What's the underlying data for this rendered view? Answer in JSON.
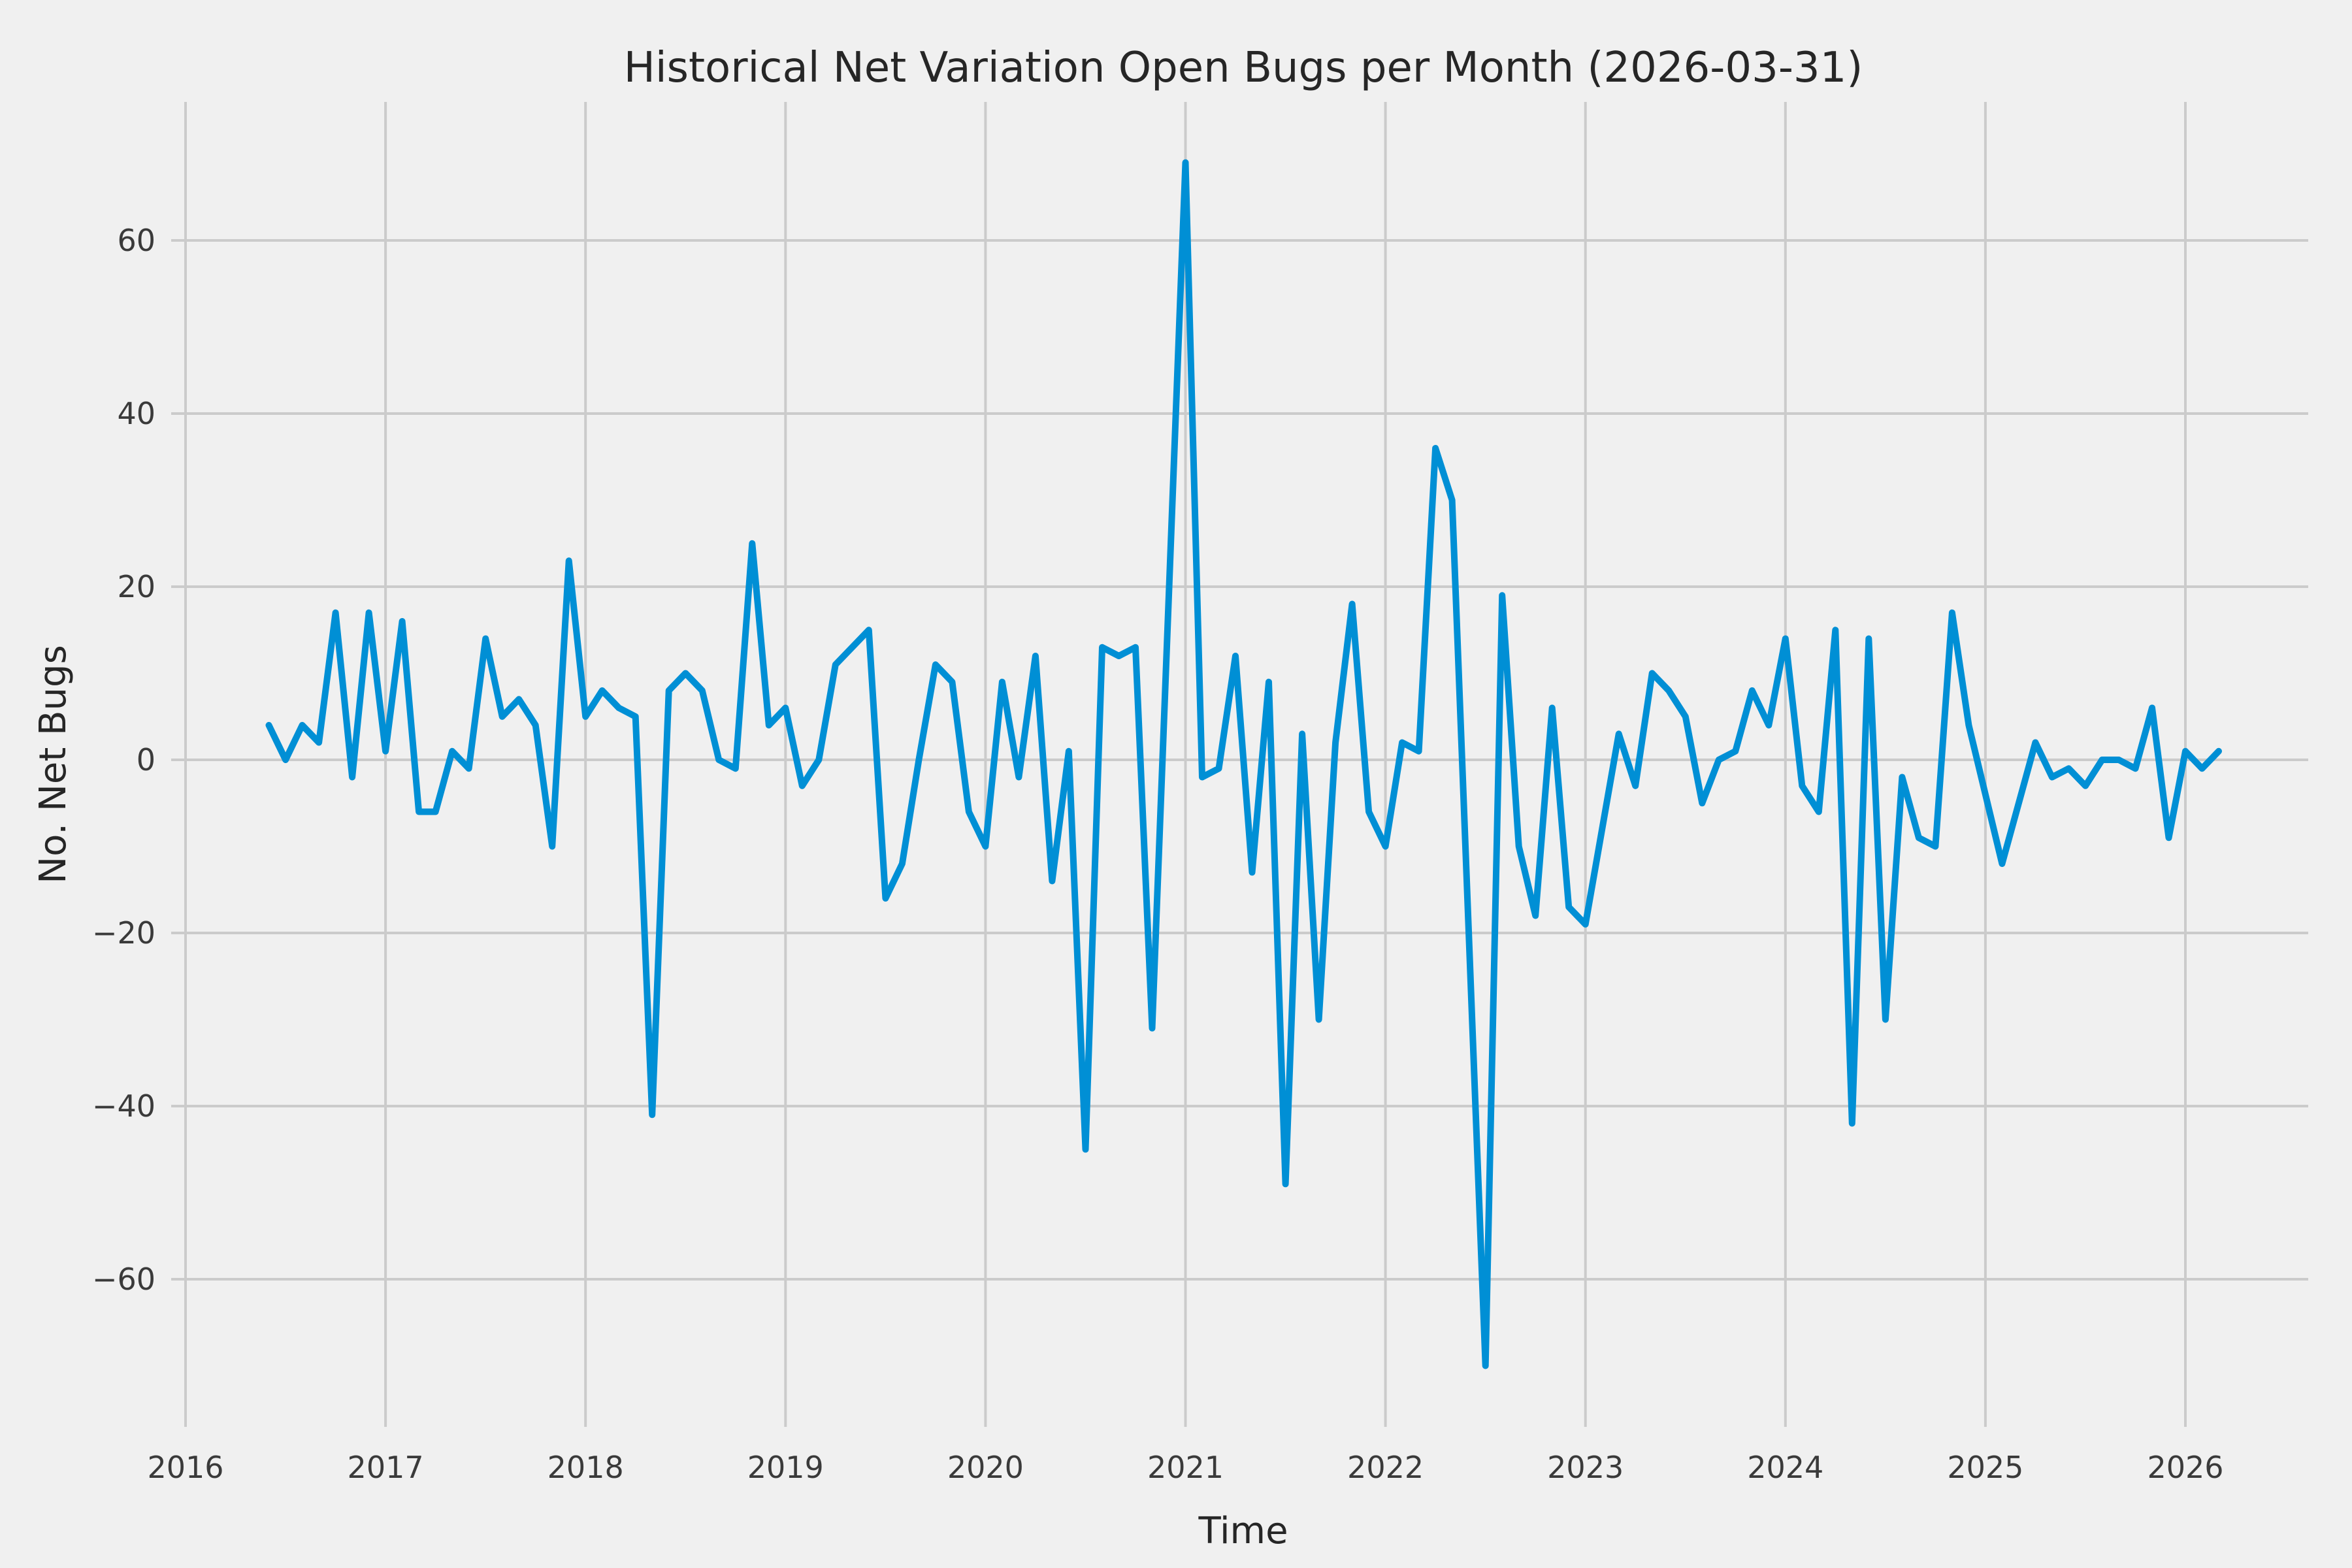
{
  "figure": {
    "background_color": "#f0f0f0",
    "grid_color": "#cbcbcb",
    "text_color": "#262626",
    "tick_color": "#3a3a3a"
  },
  "chart_data": {
    "type": "line",
    "title": "Historical Net Variation Open Bugs per Month (2026-03-31)",
    "xlabel": "Time",
    "ylabel": "No. Net Bugs",
    "legend": false,
    "grid": true,
    "x_ticks": [
      2016,
      2017,
      2018,
      2019,
      2020,
      2021,
      2022,
      2023,
      2024,
      2025,
      2026
    ],
    "x_tick_labels": [
      "2016",
      "2017",
      "2018",
      "2019",
      "2020",
      "2021",
      "2022",
      "2023",
      "2024",
      "2025",
      "2026"
    ],
    "y_ticks": [
      -60,
      -40,
      -20,
      0,
      20,
      40,
      60
    ],
    "y_tick_labels": [
      "−60",
      "−40",
      "−20",
      "0",
      "20",
      "40",
      "60"
    ],
    "ylim": [
      -77,
      76
    ],
    "xlim_years": [
      2015.93,
      2026.66
    ],
    "series": [
      {
        "name": "net-variation-open-bugs",
        "color": "#008fd5",
        "start_month": "2016-05",
        "end_month": "2026-02",
        "frequency": "monthly",
        "values": [
          4,
          0,
          4,
          2,
          17,
          -2,
          17,
          1,
          16,
          -6,
          -6,
          1,
          -1,
          14,
          5,
          7,
          4,
          -10,
          23,
          5,
          8,
          6,
          5,
          -41,
          8,
          10,
          8,
          0,
          -1,
          25,
          4,
          6,
          -3,
          0,
          11,
          13,
          15,
          -16,
          -12,
          0,
          11,
          9,
          -6,
          -10,
          9,
          -2,
          12,
          -14,
          1,
          -45,
          13,
          12,
          13,
          -31,
          19,
          69,
          -2,
          -1,
          12,
          -13,
          9,
          -49,
          3,
          -30,
          2,
          18,
          -6,
          -10,
          2,
          1,
          36,
          30,
          -20,
          -70,
          19,
          -10,
          -18,
          6,
          -17,
          -19,
          -8,
          3,
          -3,
          10,
          8,
          5,
          -5,
          0,
          1,
          8,
          4,
          14,
          -3,
          -6,
          15,
          -42,
          14,
          -30,
          -2,
          -9,
          -10,
          17,
          4,
          -4,
          -12,
          -5,
          2,
          -2,
          -1,
          -3,
          0,
          0,
          -1,
          6,
          -9,
          1,
          -1,
          1
        ],
        "extremes": {
          "max": 69,
          "max_month": "2020-12",
          "min": -70,
          "min_month": "2022-06"
        }
      }
    ]
  }
}
